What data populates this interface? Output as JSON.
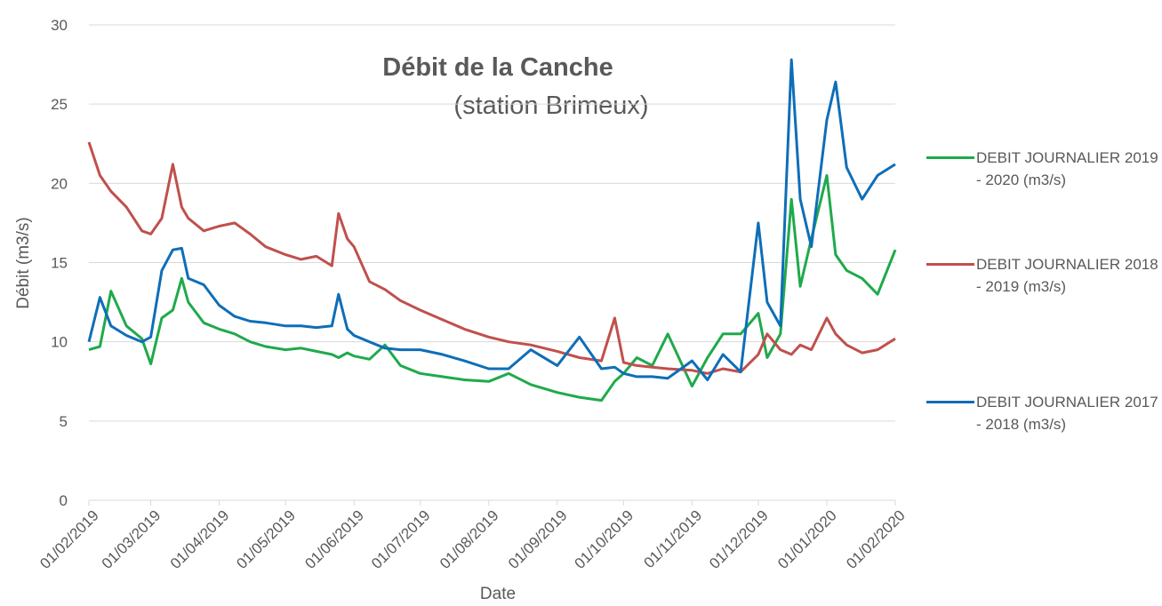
{
  "chart_data": {
    "type": "line",
    "title": "Débit de la Canche",
    "subtitle": "(station Brimeux)",
    "x_label": "Date",
    "y_label": "Débit (m3/s)",
    "x": [
      "01/02/2019",
      "06/02/2019",
      "11/02/2019",
      "18/02/2019",
      "25/02/2019",
      "01/03/2019",
      "06/03/2019",
      "11/03/2019",
      "15/03/2019",
      "18/03/2019",
      "25/03/2019",
      "01/04/2019",
      "08/04/2019",
      "15/04/2019",
      "22/04/2019",
      "01/05/2019",
      "08/05/2019",
      "15/05/2019",
      "22/05/2019",
      "25/05/2019",
      "29/05/2019",
      "01/06/2019",
      "08/06/2019",
      "15/06/2019",
      "22/06/2019",
      "01/07/2019",
      "11/07/2019",
      "21/07/2019",
      "01/08/2019",
      "10/08/2019",
      "20/08/2019",
      "01/09/2019",
      "11/09/2019",
      "21/09/2019",
      "27/09/2019",
      "01/10/2019",
      "07/10/2019",
      "14/10/2019",
      "21/10/2019",
      "01/11/2019",
      "08/11/2019",
      "15/11/2019",
      "23/11/2019",
      "01/12/2019",
      "05/12/2019",
      "11/12/2019",
      "16/12/2019",
      "20/12/2019",
      "25/12/2019",
      "01/01/2020",
      "05/01/2020",
      "10/01/2020",
      "17/01/2020",
      "24/01/2020",
      "01/02/2020"
    ],
    "series": [
      {
        "name": "DEBIT JOURNALIER 2019 - 2020 (m3/s)",
        "color": "#1faa4b",
        "values": [
          9.5,
          9.7,
          13.2,
          11,
          10.2,
          8.6,
          11.5,
          12,
          14,
          12.5,
          11.2,
          10.8,
          10.5,
          10,
          9.7,
          9.5,
          9.6,
          9.4,
          9.2,
          9.0,
          9.3,
          9.1,
          8.9,
          9.8,
          8.5,
          8,
          7.8,
          7.6,
          7.5,
          8.0,
          7.3,
          6.8,
          6.5,
          6.3,
          7.5,
          8,
          9,
          8.5,
          10.5,
          7.2,
          9,
          10.5,
          10.5,
          11.8,
          9,
          10.5,
          19,
          13.5,
          16.5,
          20.5,
          15.5,
          14.5,
          14,
          13,
          15.8
        ]
      },
      {
        "name": "DEBIT JOURNALIER 2018 - 2019 (m3/s)",
        "color": "#c0504d",
        "values": [
          22.6,
          20.5,
          19.5,
          18.5,
          17,
          16.8,
          17.8,
          21.2,
          18.5,
          17.8,
          17,
          17.3,
          17.5,
          16.8,
          16,
          15.5,
          15.2,
          15.4,
          14.8,
          18.1,
          16.5,
          16,
          13.8,
          13.3,
          12.6,
          12,
          11.4,
          10.8,
          10.3,
          10,
          9.8,
          9.4,
          9,
          8.8,
          11.5,
          8.7,
          8.5,
          8.4,
          8.3,
          8.2,
          8.0,
          8.3,
          8.1,
          9.2,
          10.5,
          9.5,
          9.2,
          9.8,
          9.5,
          11.5,
          10.5,
          9.8,
          9.3,
          9.5,
          10.2
        ]
      },
      {
        "name": "DEBIT JOURNALIER 2017 - 2018 (m3/s)",
        "color": "#0e6eb8",
        "values": [
          10.0,
          12.8,
          11,
          10.4,
          10.0,
          10.3,
          14.5,
          15.8,
          15.9,
          14,
          13.6,
          12.3,
          11.6,
          11.3,
          11.2,
          11,
          11,
          10.9,
          11,
          13,
          10.8,
          10.4,
          10,
          9.6,
          9.5,
          9.5,
          9.2,
          8.8,
          8.3,
          8.3,
          9.5,
          8.5,
          10.3,
          8.3,
          8.4,
          8,
          7.8,
          7.8,
          7.7,
          8.8,
          7.6,
          9.2,
          8.1,
          17.5,
          12.5,
          11,
          27.8,
          19,
          16,
          24,
          26.4,
          21,
          19,
          20.5,
          21.2
        ]
      }
    ],
    "xlim": [
      "01/02/2019",
      "01/02/2020"
    ],
    "xticks": [
      "01/02/2019",
      "01/03/2019",
      "01/04/2019",
      "01/05/2019",
      "01/06/2019",
      "01/07/2019",
      "01/08/2019",
      "01/09/2019",
      "01/10/2019",
      "01/11/2019",
      "01/12/2019",
      "01/01/2020",
      "01/02/2020"
    ],
    "ylim": [
      0,
      30
    ],
    "yticks": [
      0,
      5,
      10,
      15,
      20,
      25,
      30
    ],
    "grid": true,
    "legend": "right"
  }
}
